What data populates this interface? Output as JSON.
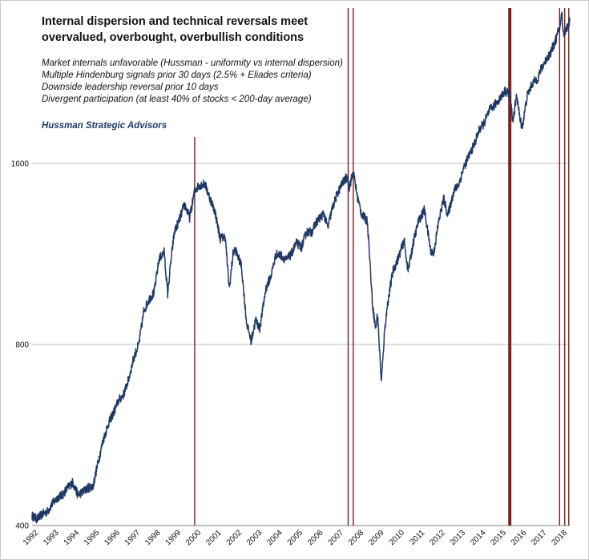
{
  "chart_data": {
    "type": "line",
    "title_lines": [
      "Internal dispersion and technical reversals meet",
      "overvalued, overbought, overbullish conditions"
    ],
    "annotations": [
      "Market internals unfavorable (Hussman - uniformity vs internal dispersion)",
      "Multiple Hindenburg signals prior 30 days (2.5% + Eliades criteria)",
      "Downside leadership reversal prior 10 days",
      "Divergent participation (at least 40% of stocks < 200-day average)"
    ],
    "source": "Hussman Strategic Advisors",
    "y_scale": "log",
    "ylim": [
      400,
      2900
    ],
    "y_ticks": [
      400,
      800,
      1600
    ],
    "xlim": [
      1992.0,
      2018.45
    ],
    "x_ticks": [
      "1992",
      "1993",
      "1994",
      "1995",
      "1996",
      "1997",
      "1998",
      "1999",
      "2000",
      "2001",
      "2002",
      "2003",
      "2004",
      "2005",
      "2006",
      "2007",
      "2008",
      "2009",
      "2010",
      "2011",
      "2012",
      "2013",
      "2014",
      "2015",
      "2016",
      "2017",
      "2018"
    ],
    "grid": "horizontal",
    "colors": {
      "series": "#1f3864",
      "signal": "#7b1e1e",
      "grid": "#bfbfbf"
    },
    "series": [
      {
        "points": [
          [
            1992.0,
            415
          ],
          [
            1992.25,
            410
          ],
          [
            1992.5,
            418
          ],
          [
            1992.75,
            422
          ],
          [
            1993.0,
            435
          ],
          [
            1993.25,
            445
          ],
          [
            1993.5,
            450
          ],
          [
            1993.75,
            462
          ],
          [
            1994.0,
            472
          ],
          [
            1994.25,
            450
          ],
          [
            1994.5,
            455
          ],
          [
            1994.75,
            462
          ],
          [
            1995.0,
            465
          ],
          [
            1995.25,
            510
          ],
          [
            1995.5,
            555
          ],
          [
            1995.75,
            590
          ],
          [
            1996.0,
            615
          ],
          [
            1996.25,
            645
          ],
          [
            1996.5,
            660
          ],
          [
            1996.75,
            700
          ],
          [
            1997.0,
            760
          ],
          [
            1997.25,
            800
          ],
          [
            1997.5,
            910
          ],
          [
            1997.75,
            950
          ],
          [
            1998.0,
            975
          ],
          [
            1998.25,
            1110
          ],
          [
            1998.5,
            1140
          ],
          [
            1998.67,
            970
          ],
          [
            1998.83,
            1100
          ],
          [
            1999.0,
            1230
          ],
          [
            1999.25,
            1290
          ],
          [
            1999.5,
            1370
          ],
          [
            1999.75,
            1300
          ],
          [
            2000.0,
            1440
          ],
          [
            2000.2,
            1470
          ],
          [
            2000.5,
            1480
          ],
          [
            2000.75,
            1400
          ],
          [
            2001.0,
            1330
          ],
          [
            2001.25,
            1200
          ],
          [
            2001.5,
            1210
          ],
          [
            2001.7,
            990
          ],
          [
            2001.9,
            1140
          ],
          [
            2002.0,
            1150
          ],
          [
            2002.3,
            1080
          ],
          [
            2002.55,
            870
          ],
          [
            2002.78,
            810
          ],
          [
            2003.0,
            880
          ],
          [
            2003.2,
            850
          ],
          [
            2003.5,
            990
          ],
          [
            2003.75,
            1040
          ],
          [
            2004.0,
            1130
          ],
          [
            2004.25,
            1125
          ],
          [
            2004.5,
            1105
          ],
          [
            2004.75,
            1130
          ],
          [
            2005.0,
            1180
          ],
          [
            2005.25,
            1160
          ],
          [
            2005.5,
            1230
          ],
          [
            2005.75,
            1230
          ],
          [
            2006.0,
            1280
          ],
          [
            2006.35,
            1320
          ],
          [
            2006.55,
            1250
          ],
          [
            2006.75,
            1340
          ],
          [
            2007.0,
            1420
          ],
          [
            2007.25,
            1480
          ],
          [
            2007.5,
            1520
          ],
          [
            2007.6,
            1460
          ],
          [
            2007.8,
            1550
          ],
          [
            2008.0,
            1410
          ],
          [
            2008.2,
            1320
          ],
          [
            2008.5,
            1280
          ],
          [
            2008.75,
            930
          ],
          [
            2008.9,
            850
          ],
          [
            2009.0,
            900
          ],
          [
            2009.18,
            690
          ],
          [
            2009.35,
            850
          ],
          [
            2009.5,
            940
          ],
          [
            2009.75,
            1060
          ],
          [
            2010.0,
            1110
          ],
          [
            2010.3,
            1190
          ],
          [
            2010.5,
            1060
          ],
          [
            2010.75,
            1180
          ],
          [
            2011.0,
            1280
          ],
          [
            2011.3,
            1340
          ],
          [
            2011.6,
            1150
          ],
          [
            2011.75,
            1130
          ],
          [
            2012.0,
            1280
          ],
          [
            2012.25,
            1400
          ],
          [
            2012.45,
            1310
          ],
          [
            2012.75,
            1440
          ],
          [
            2013.0,
            1480
          ],
          [
            2013.25,
            1580
          ],
          [
            2013.5,
            1650
          ],
          [
            2013.75,
            1720
          ],
          [
            2014.0,
            1820
          ],
          [
            2014.25,
            1870
          ],
          [
            2014.5,
            1960
          ],
          [
            2014.75,
            2000
          ],
          [
            2015.0,
            2050
          ],
          [
            2015.25,
            2110
          ],
          [
            2015.5,
            2090
          ],
          [
            2015.65,
            1880
          ],
          [
            2015.85,
            2080
          ],
          [
            2016.0,
            1890
          ],
          [
            2016.12,
            1840
          ],
          [
            2016.35,
            2070
          ],
          [
            2016.6,
            2170
          ],
          [
            2016.9,
            2220
          ],
          [
            2017.0,
            2280
          ],
          [
            2017.25,
            2370
          ],
          [
            2017.5,
            2440
          ],
          [
            2017.75,
            2560
          ],
          [
            2018.0,
            2730
          ],
          [
            2018.06,
            2860
          ],
          [
            2018.12,
            2640
          ],
          [
            2018.25,
            2660
          ],
          [
            2018.45,
            2760
          ]
        ]
      }
    ],
    "signal_dates": [
      2000.0,
      2007.55,
      2007.8,
      2015.45,
      2015.5,
      2015.55,
      2017.95,
      2018.2,
      2018.4
    ]
  }
}
